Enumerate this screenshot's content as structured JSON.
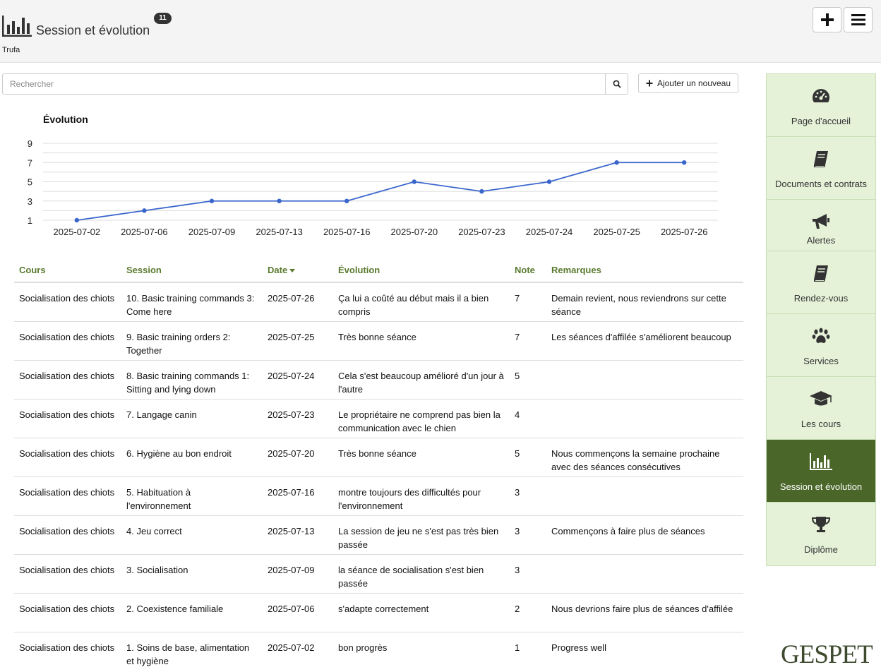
{
  "header": {
    "title": "Session et évolution",
    "badge": "11",
    "subtitle": "Trufa",
    "icon": "bar-chart-icon",
    "buttons": [
      {
        "name": "add-button",
        "icon": "plus-icon"
      },
      {
        "name": "menu-button",
        "icon": "hamburger-icon"
      }
    ]
  },
  "search": {
    "placeholder": "Rechercher",
    "value": ""
  },
  "add_new": {
    "label": "Ajouter un nouveau"
  },
  "chart_data": {
    "type": "line",
    "title": "Évolution",
    "categories": [
      "2025-07-02",
      "2025-07-06",
      "2025-07-09",
      "2025-07-13",
      "2025-07-16",
      "2025-07-20",
      "2025-07-23",
      "2025-07-24",
      "2025-07-25",
      "2025-07-26"
    ],
    "values": [
      1,
      2,
      3,
      3,
      3,
      5,
      4,
      5,
      7,
      7
    ],
    "ylim": [
      1,
      9
    ],
    "yticks": [
      1,
      3,
      5,
      7,
      9
    ],
    "grid": true,
    "line_color": "#3a66cc"
  },
  "table": {
    "columns": [
      "Cours",
      "Session",
      "Date",
      "Évolution",
      "Note",
      "Remarques"
    ],
    "sort_column": "Date",
    "rows": [
      {
        "cours": "Socialisation des chiots",
        "session": "10. Basic training commands 3: Come here",
        "date": "2025-07-26",
        "evolution": "Ça lui a coûté au début mais il a bien compris",
        "note": "7",
        "remarques": "Demain revient, nous reviendrons sur cette séance"
      },
      {
        "cours": "Socialisation des chiots",
        "session": "9. Basic training orders 2: Together",
        "date": "2025-07-25",
        "evolution": "Très bonne séance",
        "note": "7",
        "remarques": "Les séances d'affilée s'améliorent beaucoup"
      },
      {
        "cours": "Socialisation des chiots",
        "session": "8. Basic training commands 1: Sitting and lying down",
        "date": "2025-07-24",
        "evolution": "Cela s'est beaucoup amélioré d'un jour à l'autre",
        "note": "5",
        "remarques": ""
      },
      {
        "cours": "Socialisation des chiots",
        "session": "7. Langage canin",
        "date": "2025-07-23",
        "evolution": "Le propriétaire ne comprend pas bien la communication avec le chien",
        "note": "4",
        "remarques": ""
      },
      {
        "cours": "Socialisation des chiots",
        "session": "6. Hygiène au bon endroit",
        "date": "2025-07-20",
        "evolution": "Très bonne séance",
        "note": "5",
        "remarques": "Nous commençons la semaine prochaine avec des séances  consécutives"
      },
      {
        "cours": "Socialisation des chiots",
        "session": "5. Habituation à l'environnement",
        "date": "2025-07-16",
        "evolution": "montre toujours des difficultés pour l'environnement",
        "note": "3",
        "remarques": ""
      },
      {
        "cours": "Socialisation des chiots",
        "session": "4. Jeu correct",
        "date": "2025-07-13",
        "evolution": "La session de jeu ne s'est pas très bien passée",
        "note": "3",
        "remarques": "Commençons à faire plus de séances"
      },
      {
        "cours": "Socialisation des chiots",
        "session": "3. Socialisation",
        "date": "2025-07-09",
        "evolution": "la séance de socialisation s'est bien passée",
        "note": "3",
        "remarques": ""
      },
      {
        "cours": "Socialisation des chiots",
        "session": "2. Coexistence familiale",
        "date": "2025-07-06",
        "evolution": "s'adapte correctement",
        "note": "2",
        "remarques": "Nous devrions faire plus de séances d'affilée"
      },
      {
        "cours": "Socialisation des chiots",
        "session": "1. Soins de base, alimentation et hygiène",
        "date": "2025-07-02",
        "evolution": "bon progrès",
        "note": "1",
        "remarques": "Progress well"
      }
    ]
  },
  "sidebar": {
    "items": [
      {
        "label": "Page d'accueil",
        "icon": "dashboard-icon",
        "active": false
      },
      {
        "label": "Documents et contrats",
        "icon": "book-icon",
        "active": false
      },
      {
        "label": "Alertes",
        "icon": "megaphone-icon",
        "active": false
      },
      {
        "label": "Rendez-vous",
        "icon": "book-icon",
        "active": false
      },
      {
        "label": "Services",
        "icon": "paw-icon",
        "active": false
      },
      {
        "label": "Les cours",
        "icon": "graduation-cap-icon",
        "active": false
      },
      {
        "label": "Session et évolution",
        "icon": "bar-chart-icon",
        "active": true
      },
      {
        "label": "Diplôme",
        "icon": "trophy-icon",
        "active": false
      }
    ]
  },
  "brand": {
    "logo_text": "GESPET"
  },
  "colors": {
    "accent_green": "#4a6629",
    "sidebar_bg": "#e5f2d8",
    "header_text_green": "#5a7a2e"
  }
}
